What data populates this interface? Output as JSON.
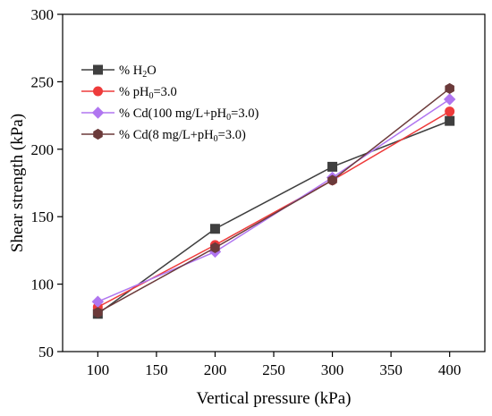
{
  "chart_data": {
    "type": "line",
    "xlabel": "Vertical pressure (kPa)",
    "ylabel": "Shear strength (kPa)",
    "xlim": [
      70,
      430
    ],
    "ylim": [
      50,
      300
    ],
    "xticks": [
      100,
      150,
      200,
      250,
      300,
      350,
      400
    ],
    "yticks": [
      50,
      100,
      150,
      200,
      250,
      300
    ],
    "x": [
      100,
      200,
      300,
      400
    ],
    "grid": false,
    "legend_position": "top-left",
    "series": [
      {
        "name": "% H2O",
        "label_parts": [
          {
            "t": "% H"
          },
          {
            "t": "2",
            "sub": true
          },
          {
            "t": "O"
          }
        ],
        "color": "#3f3f3f",
        "marker": "square",
        "values": [
          78,
          141,
          187,
          221
        ]
      },
      {
        "name": "% pH0=3.0",
        "label_parts": [
          {
            "t": "% pH"
          },
          {
            "t": "0",
            "sub": true
          },
          {
            "t": "=3.0"
          }
        ],
        "color": "#ee3b3b",
        "marker": "circle",
        "values": [
          83,
          129,
          177,
          228
        ]
      },
      {
        "name": "% Cd(100 mg/L+pH0=3.0)",
        "label_parts": [
          {
            "t": "% Cd(100 mg/L+pH"
          },
          {
            "t": "0",
            "sub": true
          },
          {
            "t": "=3.0)"
          }
        ],
        "color": "#b076f0",
        "marker": "diamond",
        "values": [
          87,
          124,
          179,
          237
        ]
      },
      {
        "name": "% Cd(8 mg/L+pH0=3.0)",
        "label_parts": [
          {
            "t": "% Cd(8 mg/L+pH"
          },
          {
            "t": "0",
            "sub": true
          },
          {
            "t": "=3.0)"
          }
        ],
        "color": "#6b3a3a",
        "marker": "hexagon",
        "values": [
          79,
          127,
          177,
          245
        ]
      }
    ]
  }
}
